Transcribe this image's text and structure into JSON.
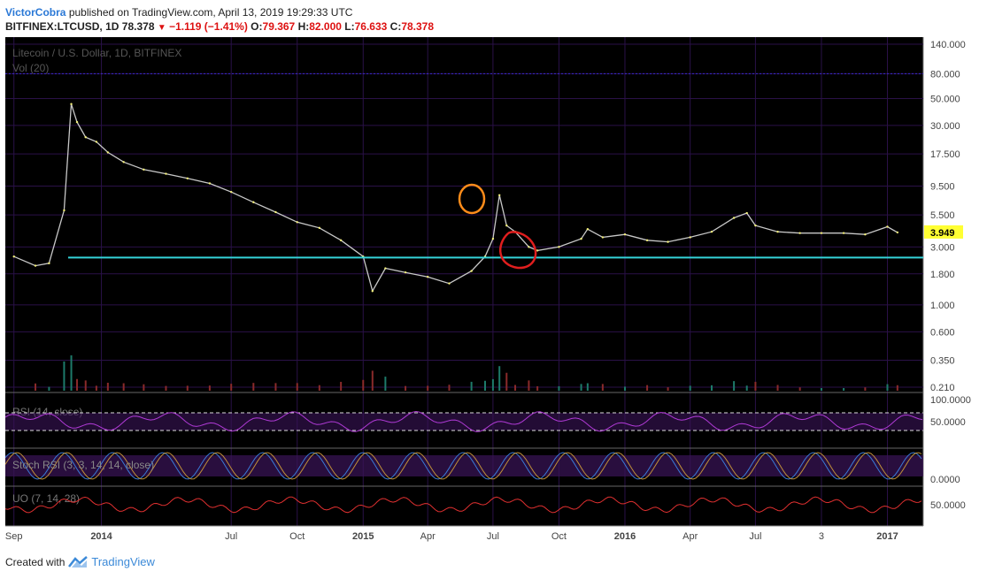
{
  "header": {
    "author": "VictorCobra",
    "published_text": "published on TradingView.com, April 13, 2019 19:29:33 UTC",
    "symbol": "BITFINEX:LTCUSD, 1D",
    "last": "78.378",
    "arrow": "▼",
    "change": "−1.119 (−1.41%)",
    "open_label": "O:",
    "open": "79.367",
    "high_label": "H:",
    "high": "82.000",
    "low_label": "L:",
    "low": "76.633",
    "close_label": "C:",
    "close": "78.378"
  },
  "footer": {
    "created_with": "Created with",
    "brand": "TradingView",
    "logo_icon": "tradingview-logo-icon"
  },
  "colors": {
    "background": "#000000",
    "grid": "#2a1148",
    "price": "#c8c8c8",
    "support": "#34d3d9",
    "rsi": "#b03ad6",
    "uo": "#e03030",
    "stoch": "#c0903a",
    "last_badge": "#ffff33",
    "orange_circle": "#ff8c1a",
    "red_circle": "#e01e1e"
  },
  "chart_data": [
    {
      "type": "line",
      "title": "Litecoin / U.S. Dollar, 1D, BITFINEX",
      "scale": "log",
      "y_ticks": [
        "140.000",
        "80.000",
        "50.000",
        "30.000",
        "17.500",
        "9.500",
        "5.500",
        "3.000",
        "1.800",
        "1.000",
        "0.600",
        "0.350",
        "0.210"
      ],
      "y_tick_values": [
        140,
        80,
        50,
        30,
        17.5,
        9.5,
        5.5,
        3,
        1.8,
        1,
        0.6,
        0.35,
        0.21
      ],
      "x_ticks": [
        "Sep",
        "2014",
        "Jul",
        "Oct",
        "2015",
        "Apr",
        "Jul",
        "Oct",
        "2016",
        "Apr",
        "Jul",
        "3",
        "2017"
      ],
      "last_price": "3.949",
      "support_level": 2.45,
      "reference_level": 80,
      "x": [
        "2013-09-01",
        "2013-10-01",
        "2013-10-20",
        "2013-11-10",
        "2013-11-20",
        "2013-11-28",
        "2013-12-10",
        "2013-12-25",
        "2014-01-10",
        "2014-02-01",
        "2014-03-01",
        "2014-04-01",
        "2014-05-01",
        "2014-06-01",
        "2014-07-01",
        "2014-08-01",
        "2014-09-01",
        "2014-10-01",
        "2014-11-01",
        "2014-12-01",
        "2015-01-01",
        "2015-01-14",
        "2015-02-01",
        "2015-03-01",
        "2015-04-01",
        "2015-05-01",
        "2015-06-01",
        "2015-06-20",
        "2015-07-01",
        "2015-07-10",
        "2015-07-20",
        "2015-08-01",
        "2015-08-20",
        "2015-09-01",
        "2015-10-01",
        "2015-11-01",
        "2015-11-10",
        "2015-12-01",
        "2016-01-01",
        "2016-02-01",
        "2016-03-01",
        "2016-04-01",
        "2016-05-01",
        "2016-06-01",
        "2016-06-19",
        "2016-07-01",
        "2016-08-01",
        "2016-09-01",
        "2016-10-01",
        "2016-11-01",
        "2016-12-01",
        "2017-01-01",
        "2017-01-15"
      ],
      "series": [
        {
          "values": [
            2.5,
            2.1,
            2.2,
            6.0,
            45,
            32,
            24,
            22,
            18,
            15,
            13,
            12,
            11,
            10,
            8.5,
            7,
            5.8,
            4.8,
            4.3,
            3.4,
            2.5,
            1.3,
            2.0,
            1.85,
            1.7,
            1.5,
            1.9,
            2.5,
            3.5,
            8.0,
            4.5,
            4.0,
            3.0,
            2.8,
            3.0,
            3.5,
            4.2,
            3.6,
            3.8,
            3.4,
            3.3,
            3.6,
            4.0,
            5.2,
            5.7,
            4.5,
            4.0,
            3.9,
            3.9,
            3.9,
            3.8,
            4.4,
            3.95
          ]
        }
      ],
      "annotations": [
        "orange circle at July 2015 peak",
        "red circle at August 2015 low"
      ]
    },
    {
      "type": "bar",
      "title": "Vol (20)"
    },
    {
      "type": "line",
      "title": "RSI (14, close)",
      "y_ticks": [
        "100.0000",
        "50.0000"
      ],
      "ylim": [
        0,
        100
      ],
      "bands": [
        70,
        30
      ]
    },
    {
      "type": "line",
      "title": "Stoch RSI (3, 3, 14, 14, close)",
      "y_ticks": [
        "0.0000"
      ]
    },
    {
      "type": "line",
      "title": "UO (7, 14, 28)",
      "y_ticks": [
        "50.0000"
      ]
    }
  ]
}
